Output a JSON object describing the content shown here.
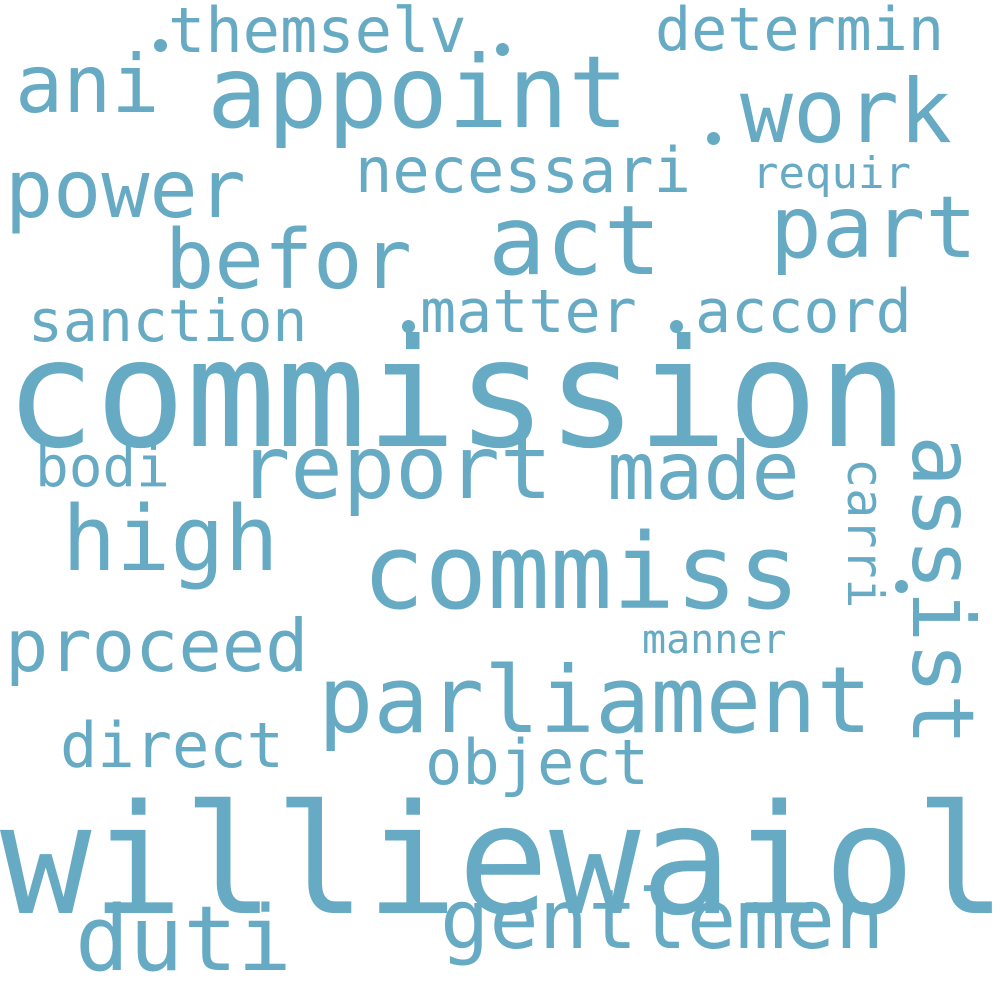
{
  "cloud": {
    "text_color": "#67aac4",
    "background": "#ffffff",
    "words": [
      {
        "text": "williewaiola",
        "weight": 1.0
      },
      {
        "text": "commission",
        "weight": 0.98
      },
      {
        "text": "commiss",
        "weight": 0.68
      },
      {
        "text": "appoint",
        "weight": 0.66
      },
      {
        "text": "parliament",
        "weight": 0.6
      },
      {
        "text": "act",
        "weight": 0.59
      },
      {
        "text": "report",
        "weight": 0.57
      },
      {
        "text": "work",
        "weight": 0.56
      },
      {
        "text": "assist",
        "weight": 0.55
      },
      {
        "text": "gentlemen",
        "weight": 0.54
      },
      {
        "text": "high",
        "weight": 0.54
      },
      {
        "text": "duti",
        "weight": 0.54
      },
      {
        "text": "power",
        "weight": 0.52
      },
      {
        "text": "ani",
        "weight": 0.51
      },
      {
        "text": "made",
        "weight": 0.51
      },
      {
        "text": "befor",
        "weight": 0.5
      },
      {
        "text": "part",
        "weight": 0.5
      },
      {
        "text": "proceed",
        "weight": 0.44
      },
      {
        "text": "necessari",
        "weight": 0.38
      },
      {
        "text": "object",
        "weight": 0.37
      },
      {
        "text": "direct",
        "weight": 0.37
      },
      {
        "text": "themselv",
        "weight": 0.37
      },
      {
        "text": "determin",
        "weight": 0.37
      },
      {
        "text": "accord",
        "weight": 0.37
      },
      {
        "text": "matter",
        "weight": 0.36
      },
      {
        "text": "sanction",
        "weight": 0.34
      },
      {
        "text": "bodi",
        "weight": 0.34
      },
      {
        "text": "carri",
        "weight": 0.34
      },
      {
        "text": "requir",
        "weight": 0.3
      },
      {
        "text": "manner",
        "weight": 0.28
      }
    ]
  }
}
